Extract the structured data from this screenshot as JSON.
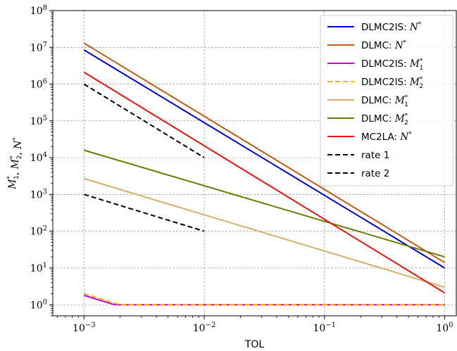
{
  "chart_data": {
    "type": "line",
    "xlabel": "TOL",
    "ylabel_parts": [
      {
        "text": "M",
        "sub": "1",
        "sup": "*"
      },
      {
        "text": ", "
      },
      {
        "text": "M",
        "sub": "2",
        "sup": "*"
      },
      {
        "text": ", "
      },
      {
        "text": "N",
        "sup": "*"
      }
    ],
    "x_scale": "log",
    "y_scale": "log",
    "xlim": [
      0.00055,
      1.25
    ],
    "ylim": [
      0.5,
      100000000
    ],
    "xticks": [
      {
        "value": 0.001,
        "base": "10",
        "exp": "−3"
      },
      {
        "value": 0.01,
        "base": "10",
        "exp": "−2"
      },
      {
        "value": 0.1,
        "base": "10",
        "exp": "−1"
      },
      {
        "value": 1,
        "base": "10",
        "exp": "0"
      }
    ],
    "yticks": [
      {
        "value": 1,
        "base": "10",
        "exp": "0"
      },
      {
        "value": 10,
        "base": "10",
        "exp": "1"
      },
      {
        "value": 100,
        "base": "10",
        "exp": "2"
      },
      {
        "value": 1000,
        "base": "10",
        "exp": "3"
      },
      {
        "value": 10000,
        "base": "10",
        "exp": "4"
      },
      {
        "value": 100000,
        "base": "10",
        "exp": "5"
      },
      {
        "value": 1000000,
        "base": "10",
        "exp": "6"
      },
      {
        "value": 10000000,
        "base": "10",
        "exp": "7"
      },
      {
        "value": 100000000,
        "base": "10",
        "exp": "8"
      }
    ],
    "grid": true,
    "legend_position": "top-right",
    "series": [
      {
        "name": "DLMC2IS: ",
        "name_math": {
          "text": "N",
          "sup": "*"
        },
        "color": "#0000dd",
        "dash": "solid",
        "points": [
          [
            0.001,
            8500000
          ],
          [
            1,
            10
          ]
        ]
      },
      {
        "name": "DLMC: ",
        "name_math": {
          "text": "N",
          "sup": "*"
        },
        "color": "#bf5b17",
        "dash": "solid",
        "points": [
          [
            0.001,
            13000000
          ],
          [
            1,
            14
          ]
        ]
      },
      {
        "name": "DLMC2IS: ",
        "name_math": {
          "text": "M",
          "sub": "1",
          "sup": "*"
        },
        "color": "#cc00cc",
        "dash": "solid",
        "points": [
          [
            0.001,
            1.8
          ],
          [
            0.0018,
            1
          ],
          [
            1,
            1
          ]
        ]
      },
      {
        "name": "DLMC2IS: ",
        "name_math": {
          "text": "M",
          "sub": "2",
          "sup": "*"
        },
        "color": "#f0b800",
        "dash": "dashed",
        "points": [
          [
            0.001,
            2
          ],
          [
            0.002,
            1
          ],
          [
            1,
            1
          ]
        ]
      },
      {
        "name": "DLMC: ",
        "name_math": {
          "text": "M",
          "sub": "1",
          "sup": "*"
        },
        "color": "#d4b06a",
        "dash": "solid",
        "points": [
          [
            0.001,
            2700
          ],
          [
            1,
            3
          ]
        ]
      },
      {
        "name": "DLMC: ",
        "name_math": {
          "text": "M",
          "sub": "2",
          "sup": "*"
        },
        "color": "#6b7a00",
        "dash": "solid",
        "points": [
          [
            0.001,
            16000
          ],
          [
            1,
            20
          ]
        ]
      },
      {
        "name": "MC2LA: ",
        "name_math": {
          "text": "N",
          "sup": "*"
        },
        "color": "#ee1111",
        "dash": "solid",
        "points": [
          [
            0.001,
            2100000
          ],
          [
            1,
            2.1
          ]
        ]
      },
      {
        "name": "rate 1",
        "color": "#000000",
        "dash": "dashed",
        "points": [
          [
            0.001,
            1000
          ],
          [
            0.01,
            100
          ]
        ]
      },
      {
        "name": "rate 2",
        "color": "#000000",
        "dash": "dashed",
        "points": [
          [
            0.001,
            1000000
          ],
          [
            0.01,
            10000
          ]
        ]
      }
    ]
  }
}
